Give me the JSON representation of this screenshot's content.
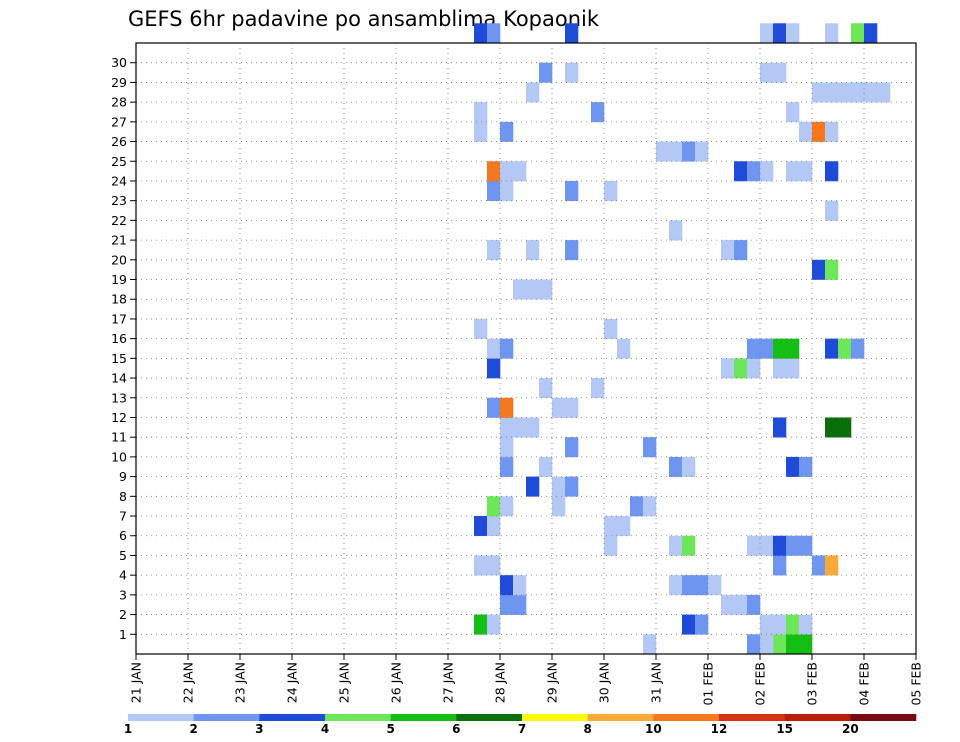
{
  "chart_data": {
    "type": "heatmap",
    "title": "GEFS 6hr padavine po ansamblima Kopaonik",
    "x_tick_labels": [
      "21 JAN",
      "22 JAN",
      "23 JAN",
      "24 JAN",
      "25 JAN",
      "26 JAN",
      "27 JAN",
      "28 JAN",
      "29 JAN",
      "30 JAN",
      "31 JAN",
      "01 FEB",
      "02 FEB",
      "03 FEB",
      "04 FEB",
      "05 FEB"
    ],
    "y_tick_labels": [
      "1",
      "2",
      "3",
      "4",
      "5",
      "6",
      "7",
      "8",
      "9",
      "10",
      "11",
      "12",
      "13",
      "14",
      "15",
      "16",
      "17",
      "18",
      "19",
      "20",
      "21",
      "22",
      "23",
      "24",
      "25",
      "26",
      "27",
      "28",
      "29",
      "30"
    ],
    "xlim_days": [
      0,
      15
    ],
    "ylim_members": [
      0,
      30
    ],
    "grid": true,
    "legend_levels": [
      "1",
      "2",
      "3",
      "4",
      "5",
      "6",
      "7",
      "8",
      "10",
      "12",
      "15",
      "20"
    ],
    "legend_colors": [
      "#b4c8f5",
      "#6e96f0",
      "#1e4bd7",
      "#6ee65a",
      "#14be14",
      "#0a6e0a",
      "#fafa0a",
      "#faaa37",
      "#f5781e",
      "#d7320f",
      "#b91e0a",
      "#780a14"
    ],
    "cells": [
      [
        0,
        39,
        1
      ],
      [
        0,
        49,
        4
      ],
      [
        0,
        50,
        5
      ],
      [
        0,
        51,
        5
      ],
      [
        0,
        47,
        2
      ],
      [
        0,
        48,
        1
      ],
      [
        1,
        42,
        3
      ],
      [
        1,
        43,
        2
      ],
      [
        1,
        48,
        1
      ],
      [
        1,
        49,
        1
      ],
      [
        1,
        50,
        4
      ],
      [
        1,
        51,
        1
      ],
      [
        1,
        26,
        5
      ],
      [
        1,
        27,
        1
      ],
      [
        2,
        28,
        2
      ],
      [
        2,
        29,
        2
      ],
      [
        2,
        45,
        1
      ],
      [
        2,
        46,
        1
      ],
      [
        2,
        47,
        2
      ],
      [
        3,
        28,
        3
      ],
      [
        3,
        29,
        1
      ],
      [
        3,
        41,
        1
      ],
      [
        3,
        42,
        2
      ],
      [
        3,
        43,
        2
      ],
      [
        3,
        44,
        1
      ],
      [
        4,
        26,
        1
      ],
      [
        4,
        27,
        1
      ],
      [
        4,
        49,
        2
      ],
      [
        4,
        52,
        2
      ],
      [
        4,
        53,
        8
      ],
      [
        5,
        36,
        1
      ],
      [
        5,
        41,
        1
      ],
      [
        5,
        42,
        4
      ],
      [
        5,
        47,
        1
      ],
      [
        5,
        48,
        1
      ],
      [
        5,
        49,
        3
      ],
      [
        5,
        50,
        2
      ],
      [
        5,
        51,
        2
      ],
      [
        6,
        26,
        3
      ],
      [
        6,
        27,
        1
      ],
      [
        6,
        36,
        1
      ],
      [
        6,
        37,
        1
      ],
      [
        7,
        27,
        4
      ],
      [
        7,
        28,
        1
      ],
      [
        7,
        32,
        1
      ],
      [
        7,
        38,
        2
      ],
      [
        7,
        39,
        1
      ],
      [
        8,
        30,
        3
      ],
      [
        8,
        32,
        1
      ],
      [
        8,
        33,
        2
      ],
      [
        9,
        28,
        2
      ],
      [
        9,
        31,
        1
      ],
      [
        9,
        41,
        2
      ],
      [
        9,
        42,
        1
      ],
      [
        9,
        50,
        3
      ],
      [
        9,
        51,
        2
      ],
      [
        10,
        28,
        1
      ],
      [
        10,
        33,
        2
      ],
      [
        10,
        39,
        2
      ],
      [
        11,
        28,
        1
      ],
      [
        11,
        29,
        1
      ],
      [
        11,
        30,
        1
      ],
      [
        11,
        49,
        3
      ],
      [
        11,
        53,
        6
      ],
      [
        11,
        54,
        6
      ],
      [
        12,
        27,
        2
      ],
      [
        12,
        28,
        9
      ],
      [
        12,
        32,
        1
      ],
      [
        12,
        33,
        1
      ],
      [
        13,
        31,
        1
      ],
      [
        13,
        35,
        1
      ],
      [
        14,
        27,
        3
      ],
      [
        14,
        45,
        1
      ],
      [
        14,
        46,
        4
      ],
      [
        14,
        47,
        1
      ],
      [
        14,
        49,
        1
      ],
      [
        14,
        50,
        1
      ],
      [
        15,
        27,
        1
      ],
      [
        15,
        28,
        2
      ],
      [
        15,
        37,
        1
      ],
      [
        15,
        47,
        2
      ],
      [
        15,
        48,
        2
      ],
      [
        15,
        49,
        5
      ],
      [
        15,
        50,
        5
      ],
      [
        15,
        53,
        3
      ],
      [
        15,
        54,
        4
      ],
      [
        15,
        55,
        2
      ],
      [
        16,
        26,
        1
      ],
      [
        16,
        36,
        1
      ],
      [
        18,
        29,
        1
      ],
      [
        18,
        30,
        1
      ],
      [
        18,
        31,
        1
      ],
      [
        19,
        52,
        3
      ],
      [
        19,
        53,
        4
      ],
      [
        20,
        27,
        1
      ],
      [
        20,
        30,
        1
      ],
      [
        20,
        33,
        2
      ],
      [
        20,
        45,
        1
      ],
      [
        20,
        46,
        2
      ],
      [
        21,
        41,
        1
      ],
      [
        22,
        53,
        1
      ],
      [
        23,
        27,
        2
      ],
      [
        23,
        28,
        1
      ],
      [
        23,
        33,
        2
      ],
      [
        23,
        36,
        1
      ],
      [
        24,
        27,
        9
      ],
      [
        24,
        28,
        1
      ],
      [
        24,
        29,
        1
      ],
      [
        24,
        46,
        3
      ],
      [
        24,
        47,
        2
      ],
      [
        24,
        48,
        1
      ],
      [
        24,
        50,
        1
      ],
      [
        24,
        51,
        1
      ],
      [
        24,
        53,
        3
      ],
      [
        25,
        40,
        1
      ],
      [
        25,
        41,
        1
      ],
      [
        25,
        42,
        2
      ],
      [
        25,
        43,
        1
      ],
      [
        26,
        26,
        1
      ],
      [
        26,
        28,
        2
      ],
      [
        26,
        51,
        1
      ],
      [
        26,
        52,
        9
      ],
      [
        26,
        53,
        1
      ],
      [
        27,
        26,
        1
      ],
      [
        27,
        35,
        2
      ],
      [
        27,
        50,
        1
      ],
      [
        28,
        30,
        1
      ],
      [
        28,
        52,
        1
      ],
      [
        28,
        53,
        1
      ],
      [
        28,
        54,
        1
      ],
      [
        28,
        55,
        1
      ],
      [
        28,
        56,
        1
      ],
      [
        28,
        57,
        1
      ],
      [
        29,
        31,
        2
      ],
      [
        29,
        33,
        1
      ],
      [
        29,
        48,
        1
      ],
      [
        29,
        49,
        1
      ],
      [
        31,
        26,
        3
      ],
      [
        31,
        27,
        2
      ],
      [
        31,
        33,
        3
      ],
      [
        31,
        48,
        1
      ],
      [
        31,
        49,
        3
      ],
      [
        31,
        50,
        1
      ],
      [
        31,
        53,
        1
      ],
      [
        31,
        55,
        4
      ],
      [
        31,
        56,
        3
      ]
    ]
  }
}
